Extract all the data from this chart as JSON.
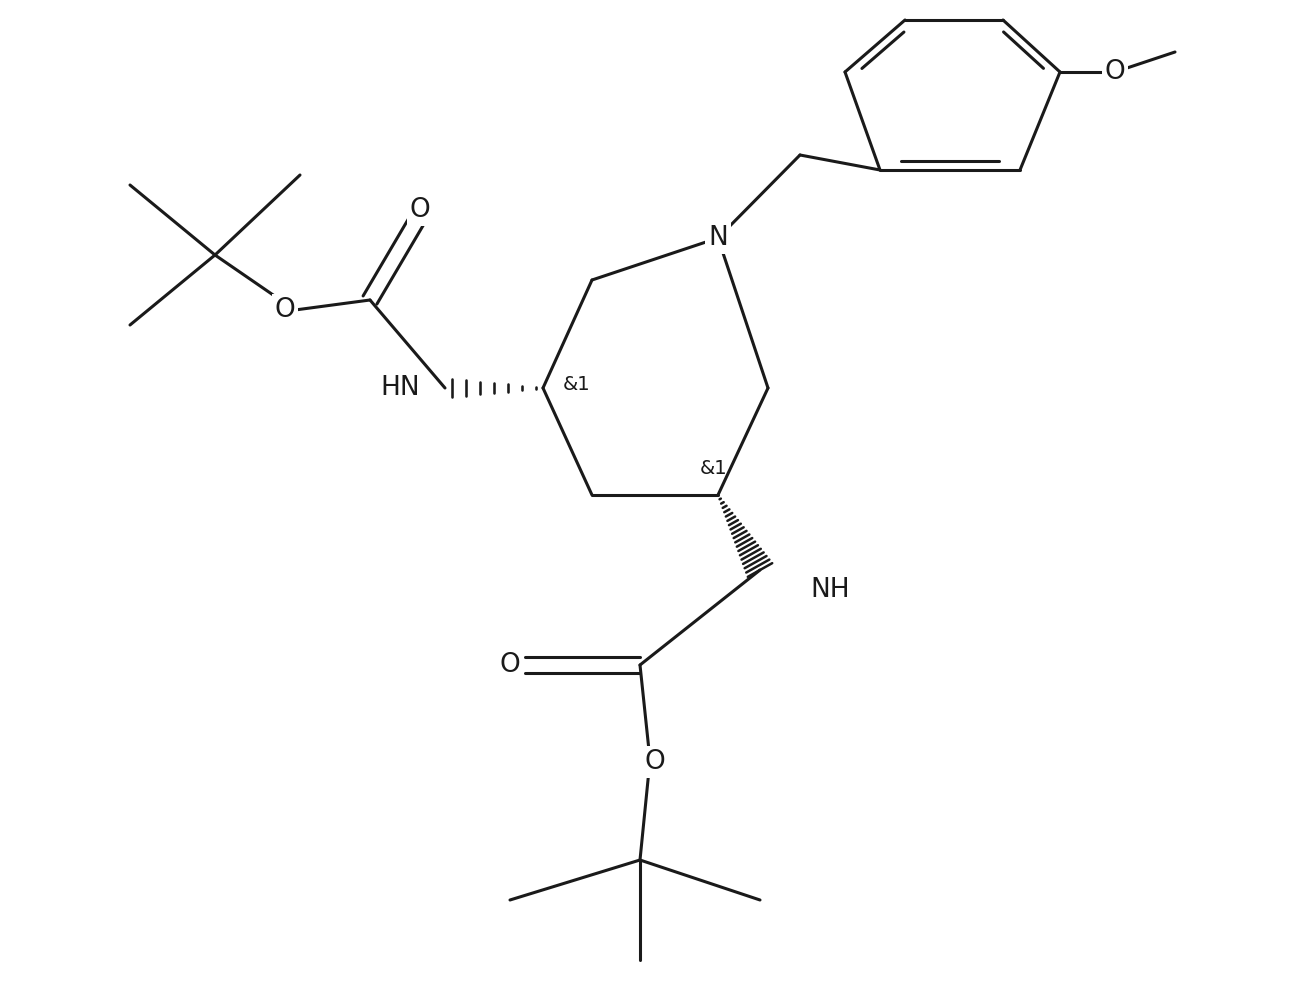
{
  "background_color": "#ffffff",
  "line_color": "#1a1a1a",
  "lw": 2.2,
  "fs": 17,
  "figsize": [
    13.16,
    9.94
  ],
  "dpi": 100,
  "xlim": [
    0,
    1316
  ],
  "ylim": [
    0,
    994
  ]
}
